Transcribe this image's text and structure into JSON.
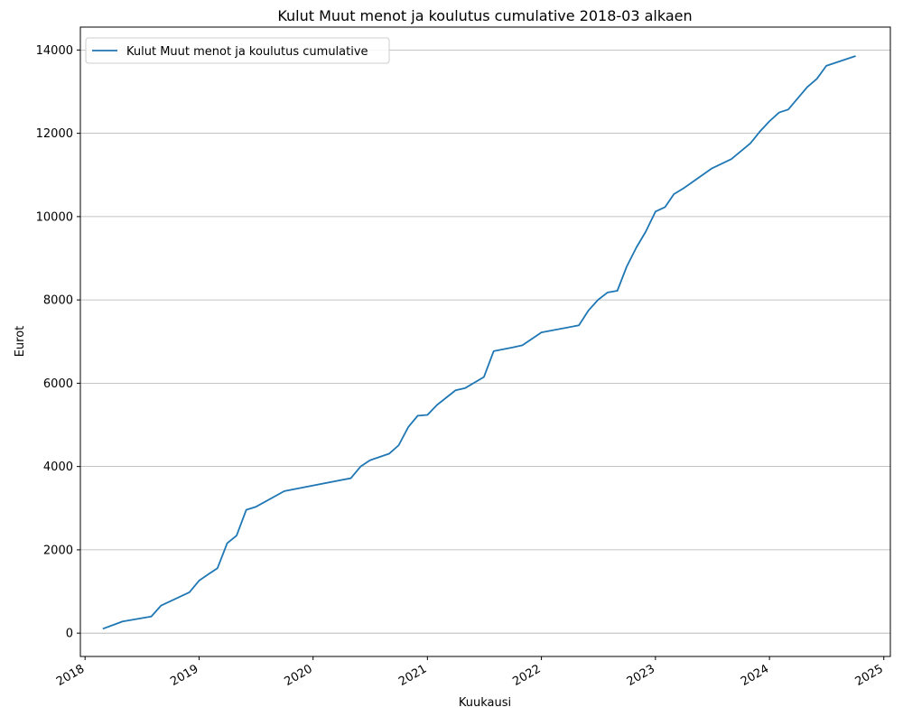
{
  "chart_data": {
    "type": "line",
    "title": "Kulut Muut menot ja koulutus cumulative 2018-03 alkaen",
    "xlabel": "Kuukausi",
    "ylabel": "Eurot",
    "xlim": [
      "2017-12-17",
      "2025-01-22"
    ],
    "ylim": [
      -560,
      14550
    ],
    "x_ticks": [
      "2018-01-01",
      "2019-01-01",
      "2020-01-01",
      "2021-01-01",
      "2022-01-01",
      "2023-01-01",
      "2024-01-01",
      "2025-01-01"
    ],
    "x_tick_labels": [
      "2018",
      "2019",
      "2020",
      "2021",
      "2022",
      "2023",
      "2024",
      "2025"
    ],
    "y_ticks": [
      0,
      2000,
      4000,
      6000,
      8000,
      10000,
      12000,
      14000
    ],
    "y_tick_labels": [
      "0",
      "2000",
      "4000",
      "6000",
      "8000",
      "10000",
      "12000",
      "14000"
    ],
    "grid": "y-major",
    "legend_position": "upper-left",
    "series": [
      {
        "name": "Kulut Muut menot ja koulutus cumulative",
        "color": "#1f77b4",
        "x": [
          "2018-03-01",
          "2018-05-01",
          "2018-08-01",
          "2018-09-01",
          "2018-12-01",
          "2019-01-01",
          "2019-02-01",
          "2019-03-01",
          "2019-04-01",
          "2019-05-01",
          "2019-06-01",
          "2019-07-01",
          "2019-10-01",
          "2020-05-01",
          "2020-06-01",
          "2020-07-01",
          "2020-09-01",
          "2020-10-01",
          "2020-11-01",
          "2020-12-01",
          "2021-01-01",
          "2021-02-01",
          "2021-04-01",
          "2021-05-01",
          "2021-07-01",
          "2021-08-01",
          "2021-10-01",
          "2021-11-01",
          "2022-01-01",
          "2022-05-01",
          "2022-06-01",
          "2022-07-01",
          "2022-08-01",
          "2022-09-01",
          "2022-10-01",
          "2022-11-01",
          "2022-12-01",
          "2023-01-01",
          "2023-02-01",
          "2023-03-01",
          "2023-04-01",
          "2023-07-01",
          "2023-09-01",
          "2023-11-01",
          "2023-12-01",
          "2024-01-01",
          "2024-02-01",
          "2024-03-01",
          "2024-05-01",
          "2024-06-01",
          "2024-07-01",
          "2024-10-01"
        ],
        "values": [
          110,
          280,
          400,
          660,
          980,
          1260,
          1420,
          1560,
          2160,
          2340,
          2960,
          3030,
          3410,
          3720,
          4000,
          4150,
          4310,
          4510,
          4950,
          5220,
          5240,
          5480,
          5830,
          5880,
          6150,
          6770,
          6860,
          6910,
          7220,
          7390,
          7750,
          8000,
          8180,
          8220,
          8800,
          9260,
          9640,
          10120,
          10230,
          10540,
          10680,
          11160,
          11380,
          11760,
          12040,
          12290,
          12500,
          12570,
          13110,
          13310,
          13620,
          13850
        ]
      }
    ]
  }
}
